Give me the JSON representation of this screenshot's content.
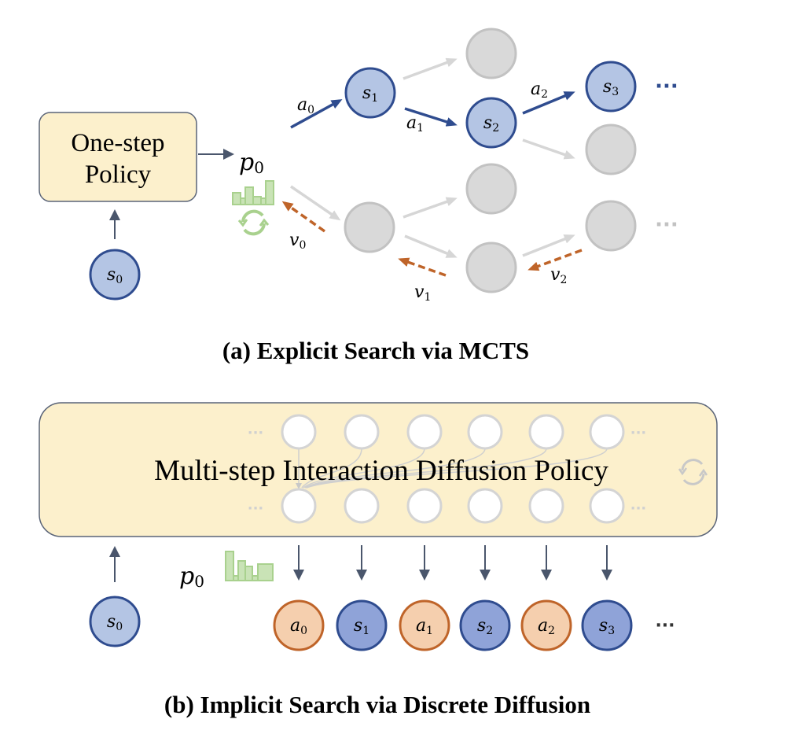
{
  "colors": {
    "state_fill": "#b4c5e4",
    "state_fill_dark": "#8fa3d8",
    "state_stroke": "#2f4c8f",
    "action_fill": "#f5cfae",
    "action_stroke": "#bf6429",
    "unexplored_fill": "#d9d9d9",
    "unexplored_stroke": "#c2c2c2",
    "value_arrow": "#bf6429",
    "policy_box_fill": "#fcf0cc",
    "histogram": "#a9d18e"
  },
  "panel_a": {
    "policy_box": {
      "line1": "One-step",
      "line2": "Policy"
    },
    "p0": {
      "base": "p",
      "sub": "0"
    },
    "s0": {
      "base": "s",
      "sub": "0"
    },
    "s1": {
      "base": "s",
      "sub": "1"
    },
    "s2": {
      "base": "s",
      "sub": "2"
    },
    "s3": {
      "base": "s",
      "sub": "3"
    },
    "a0": {
      "base": "a",
      "sub": "0"
    },
    "a1": {
      "base": "a",
      "sub": "1"
    },
    "a2": {
      "base": "a",
      "sub": "2"
    },
    "v0": {
      "base": "v",
      "sub": "0"
    },
    "v1": {
      "base": "v",
      "sub": "1"
    },
    "v2": {
      "base": "v",
      "sub": "2"
    },
    "ellipsis": "···",
    "caption": "(a) Explicit Search via MCTS"
  },
  "panel_b": {
    "policy_box": "Multi-step Interaction Diffusion Policy",
    "p0": {
      "base": "p",
      "sub": "0"
    },
    "ellipsis": "···",
    "sequence": [
      {
        "base": "s",
        "sub": "0"
      },
      {
        "base": "a",
        "sub": "0"
      },
      {
        "base": "s",
        "sub": "1"
      },
      {
        "base": "a",
        "sub": "1"
      },
      {
        "base": "s",
        "sub": "2"
      },
      {
        "base": "a",
        "sub": "2"
      },
      {
        "base": "s",
        "sub": "3"
      }
    ],
    "caption": "(b) Implicit Search via Discrete Diffusion"
  }
}
